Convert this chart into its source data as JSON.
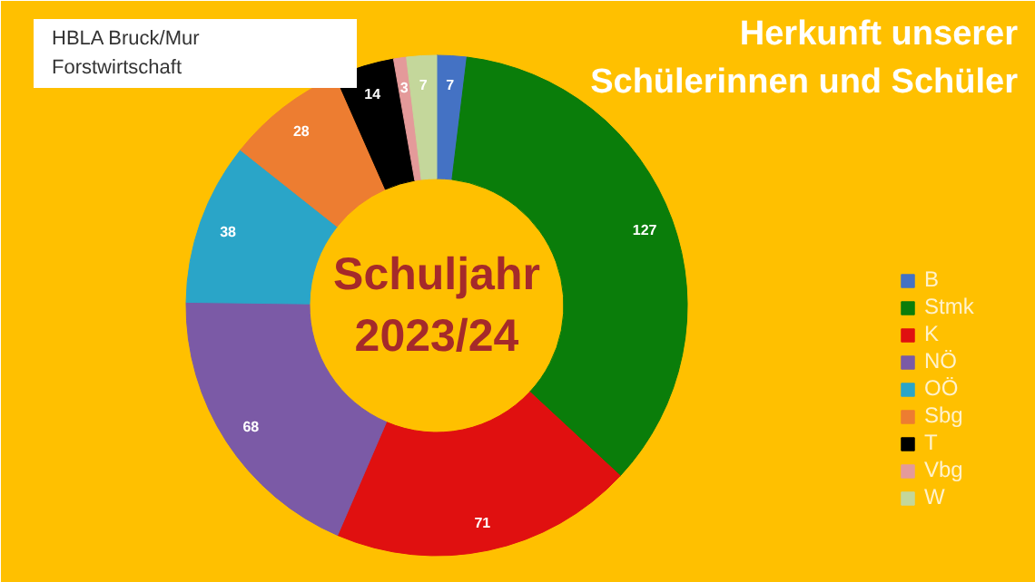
{
  "chart_data": {
    "type": "donut",
    "title": "Herkunft unserer Schülerinnen und Schüler",
    "annotations": [
      "Schuljahr 2023/24",
      "HBLA Bruck/Mur Forstwirtschaft"
    ],
    "categories": [
      "B",
      "Stmk",
      "K",
      "NÖ",
      "OÖ",
      "Sbg",
      "T",
      "Vbg",
      "W"
    ],
    "values": [
      7,
      127,
      71,
      68,
      38,
      28,
      14,
      3,
      7
    ],
    "colors": [
      "#4472c4",
      "#0a7d0a",
      "#e01010",
      "#7b5aa6",
      "#2aa5c8",
      "#ed7d31",
      "#000000",
      "#e49a9a",
      "#c4d79b"
    ],
    "data_labels": true,
    "legend": "right"
  }
}
